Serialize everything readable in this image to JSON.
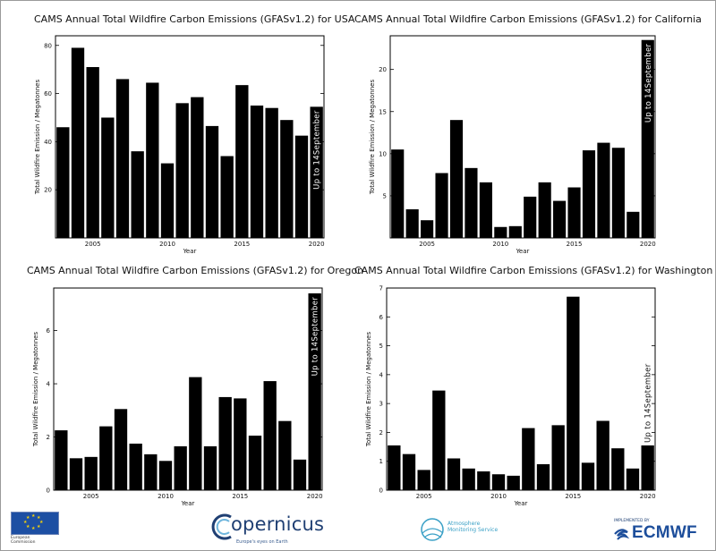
{
  "chart_data": [
    {
      "type": "bar",
      "title": "CAMS Annual Total Wildfire Carbon Emissions (GFASv1.2) for USA",
      "xlabel": "Year",
      "ylabel": "Total Wildfire Emission / Megatonnes",
      "categories": [
        2003,
        2004,
        2005,
        2006,
        2007,
        2008,
        2009,
        2010,
        2011,
        2012,
        2013,
        2014,
        2015,
        2016,
        2017,
        2018,
        2019,
        2020
      ],
      "values": [
        46,
        79,
        71,
        50,
        66,
        36,
        64.5,
        31,
        56,
        58.5,
        46.5,
        34,
        63.5,
        55,
        54,
        49,
        42.5,
        54.5
      ],
      "ylim": [
        0,
        84
      ],
      "yticks": [
        20,
        40,
        60,
        80
      ],
      "xticks": [
        2005,
        2010,
        2015,
        2020
      ],
      "annotation": "Up to 14September"
    },
    {
      "type": "bar",
      "title": "CAMS Annual Total Wildfire Carbon Emissions (GFASv1.2) for California",
      "xlabel": "Year",
      "ylabel": "Total Wildfire Emission / Megatonnes",
      "categories": [
        2003,
        2004,
        2005,
        2006,
        2007,
        2008,
        2009,
        2010,
        2011,
        2012,
        2013,
        2014,
        2015,
        2016,
        2017,
        2018,
        2019,
        2020
      ],
      "values": [
        10.5,
        3.4,
        2.1,
        7.7,
        14,
        8.3,
        6.6,
        1.3,
        1.4,
        4.9,
        6.6,
        4.4,
        6,
        10.4,
        11.3,
        10.7,
        3.1,
        23.5
      ],
      "ylim": [
        0,
        24
      ],
      "yticks": [
        5,
        10,
        15,
        20
      ],
      "xticks": [
        2005,
        2010,
        2015,
        2020
      ],
      "annotation": "Up to 14September"
    },
    {
      "type": "bar",
      "title": "CAMS Annual Total Wildfire Carbon Emissions (GFASv1.2) for Oregon",
      "xlabel": "Year",
      "ylabel": "Total Wildfire Emission / Megatonnes",
      "categories": [
        2003,
        2004,
        2005,
        2006,
        2007,
        2008,
        2009,
        2010,
        2011,
        2012,
        2013,
        2014,
        2015,
        2016,
        2017,
        2018,
        2019,
        2020
      ],
      "values": [
        2.25,
        1.2,
        1.25,
        2.4,
        3.05,
        1.75,
        1.35,
        1.1,
        1.65,
        4.25,
        1.65,
        3.5,
        3.45,
        2.05,
        4.1,
        2.6,
        1.15,
        7.4
      ],
      "ylim": [
        0,
        7.6
      ],
      "yticks": [
        0,
        2,
        4,
        6
      ],
      "xticks": [
        2005,
        2010,
        2015,
        2020
      ],
      "annotation": "Up to 14September"
    },
    {
      "type": "bar",
      "title": "CAMS Annual Total Wildfire Carbon Emissions (GFASv1.2) for Washington",
      "xlabel": "Year",
      "ylabel": "Total Wildfire Emission / Megatonnes",
      "categories": [
        2003,
        2004,
        2005,
        2006,
        2007,
        2008,
        2009,
        2010,
        2011,
        2012,
        2013,
        2014,
        2015,
        2016,
        2017,
        2018,
        2019,
        2020
      ],
      "values": [
        1.55,
        1.25,
        0.7,
        3.45,
        1.1,
        0.75,
        0.65,
        0.55,
        0.5,
        2.15,
        0.9,
        2.25,
        6.7,
        0.95,
        2.4,
        1.45,
        0.75,
        1.55
      ],
      "ylim": [
        0,
        7
      ],
      "yticks": [
        0,
        1,
        2,
        3,
        4,
        5,
        6,
        7
      ],
      "xticks": [
        2005,
        2010,
        2015,
        2020
      ],
      "annotation": "Up to 14September"
    }
  ],
  "footer": {
    "eu_text_1": "European",
    "eu_text_2": "Commission",
    "copernicus_word": "opernicus",
    "copernicus_c": "C",
    "copernicus_tagline": "Europe's eyes on Earth",
    "cams_line_1": "Atmosphere",
    "cams_line_2": "Monitoring Service",
    "ecmwf_small": "IMPLEMENTED BY",
    "ecmwf_word": "ECMWF",
    "colors": {
      "copernicus": "#1f3f73",
      "cams": "#3aa0c6",
      "ecmwf": "#1d4e9b",
      "eu_blue": "#1d4fa3",
      "eu_star": "#f5d20a"
    }
  }
}
